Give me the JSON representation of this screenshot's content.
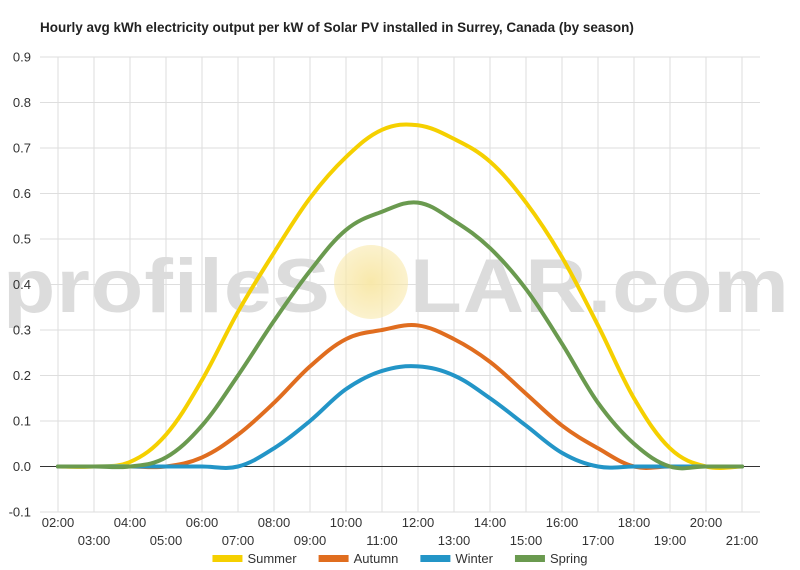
{
  "title": "Hourly avg kWh electricity output per kW of Solar PV installed in Surrey, Canada (by season)",
  "watermark": {
    "part1": "profileS",
    "part2": "LAR.com",
    "sun_color": "#f8e7a6",
    "text_color": "#dcdcdc"
  },
  "colors": {
    "grid": "#dedede",
    "zero_line": "#333333",
    "axis_text": "#333333",
    "background": "#ffffff"
  },
  "chart_data": {
    "type": "line",
    "title": "Hourly avg kWh electricity output per kW of Solar PV installed in Surrey, Canada (by season)",
    "xlabel": "",
    "ylabel": "",
    "ylim": [
      -0.1,
      0.9
    ],
    "xlim": [
      1.5,
      21.5
    ],
    "y_ticks": [
      -0.1,
      0.0,
      0.1,
      0.2,
      0.3,
      0.4,
      0.5,
      0.6,
      0.7,
      0.8,
      0.9
    ],
    "y_tick_labels": [
      "-0.1",
      "0.0",
      "0.1",
      "0.2",
      "0.3",
      "0.4",
      "0.5",
      "0.6",
      "0.7",
      "0.8",
      "0.9"
    ],
    "x_ticks": [
      2,
      3,
      4,
      5,
      6,
      7,
      8,
      9,
      10,
      11,
      12,
      13,
      14,
      15,
      16,
      17,
      18,
      19,
      20,
      21
    ],
    "x_tick_labels": [
      "02:00",
      "03:00",
      "04:00",
      "05:00",
      "06:00",
      "07:00",
      "08:00",
      "09:00",
      "10:00",
      "11:00",
      "12:00",
      "13:00",
      "14:00",
      "15:00",
      "16:00",
      "17:00",
      "18:00",
      "19:00",
      "20:00",
      "21:00"
    ],
    "grid": true,
    "legend_position": "bottom",
    "x": [
      2,
      3,
      4,
      5,
      6,
      7,
      8,
      9,
      10,
      11,
      12,
      13,
      14,
      15,
      16,
      17,
      18,
      19,
      20,
      21
    ],
    "series": [
      {
        "name": "Summer",
        "color": "#f5d000",
        "values": [
          0.0,
          0.0,
          0.01,
          0.07,
          0.19,
          0.34,
          0.47,
          0.59,
          0.68,
          0.74,
          0.75,
          0.72,
          0.67,
          0.58,
          0.46,
          0.31,
          0.15,
          0.04,
          0.0,
          0.0
        ]
      },
      {
        "name": "Autumn",
        "color": "#e06d1f",
        "values": [
          0.0,
          0.0,
          0.0,
          0.0,
          0.02,
          0.07,
          0.14,
          0.22,
          0.28,
          0.3,
          0.31,
          0.28,
          0.23,
          0.16,
          0.09,
          0.04,
          0.0,
          0.0,
          0.0,
          0.0
        ]
      },
      {
        "name": "Winter",
        "color": "#2395c7",
        "values": [
          0.0,
          0.0,
          0.0,
          0.0,
          0.0,
          0.0,
          0.04,
          0.1,
          0.17,
          0.21,
          0.22,
          0.2,
          0.15,
          0.09,
          0.03,
          0.0,
          0.0,
          0.0,
          0.0,
          0.0
        ]
      },
      {
        "name": "Spring",
        "color": "#6a9a4f",
        "values": [
          0.0,
          0.0,
          0.0,
          0.02,
          0.09,
          0.2,
          0.32,
          0.43,
          0.52,
          0.56,
          0.58,
          0.54,
          0.48,
          0.39,
          0.27,
          0.14,
          0.05,
          0.0,
          0.0,
          0.0
        ]
      }
    ]
  }
}
